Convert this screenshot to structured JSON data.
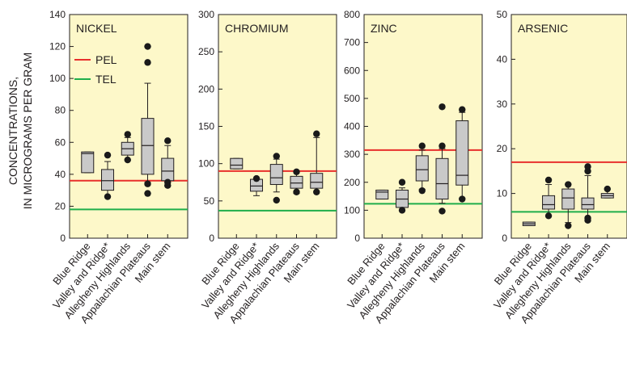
{
  "ylabel_lines": [
    "CONCENTRATIONS,",
    "IN MICROGRAMS PER GRAM"
  ],
  "colors": {
    "panel_bg": "#fdf8c9",
    "pel": "#e8302c",
    "tel": "#1fae4b",
    "box_fill": "#c9c9c9",
    "outlier": "#1a1a1a"
  },
  "chart_data": [
    {
      "type": "boxplot",
      "title": "NICKEL",
      "ylim": [
        0,
        140
      ],
      "yticks": [
        0,
        20,
        40,
        60,
        80,
        100,
        120,
        140
      ],
      "categories": [
        "Blue Ridge",
        "Valley and Ridge*",
        "Allegheny Highlands",
        "Appalachian Plateaus",
        "Main stem"
      ],
      "boxes": [
        {
          "q1": 41,
          "median": 53,
          "q3": 54,
          "whisker_low": 41,
          "whisker_high": 54,
          "outliers": []
        },
        {
          "q1": 30,
          "median": 36,
          "q3": 43,
          "whisker_low": 26,
          "whisker_high": 48,
          "outliers": [
            26,
            52
          ]
        },
        {
          "q1": 52,
          "median": 56,
          "q3": 60,
          "whisker_low": 49,
          "whisker_high": 63,
          "outliers": [
            49,
            65
          ]
        },
        {
          "q1": 40,
          "median": 58,
          "q3": 75,
          "whisker_low": 35,
          "whisker_high": 97,
          "outliers": [
            28,
            34,
            110,
            120
          ]
        },
        {
          "q1": 36,
          "median": 42,
          "q3": 50,
          "whisker_low": 33,
          "whisker_high": 58,
          "outliers": [
            33,
            35,
            61
          ]
        }
      ],
      "pel": 36,
      "tel": 18,
      "legend": {
        "pel_label": "PEL",
        "tel_label": "TEL"
      }
    },
    {
      "type": "boxplot",
      "title": "CHROMIUM",
      "ylim": [
        0,
        300
      ],
      "yticks": [
        0,
        50,
        100,
        150,
        200,
        250,
        300
      ],
      "categories": [
        "Blue Ridge",
        "Valley and Ridge*",
        "Allegheny Highlands",
        "Appalachian Plateaus",
        "Main stem"
      ],
      "boxes": [
        {
          "q1": 93,
          "median": 98,
          "q3": 107,
          "whisker_low": 93,
          "whisker_high": 107,
          "outliers": []
        },
        {
          "q1": 63,
          "median": 70,
          "q3": 79,
          "whisker_low": 57,
          "whisker_high": 80,
          "outliers": [
            80
          ]
        },
        {
          "q1": 72,
          "median": 81,
          "q3": 99,
          "whisker_low": 62,
          "whisker_high": 106,
          "outliers": [
            51,
            110
          ]
        },
        {
          "q1": 67,
          "median": 74,
          "q3": 83,
          "whisker_low": 60,
          "whisker_high": 90,
          "outliers": [
            62,
            89
          ]
        },
        {
          "q1": 67,
          "median": 75,
          "q3": 87,
          "whisker_low": 62,
          "whisker_high": 135,
          "outliers": [
            62,
            140
          ]
        }
      ],
      "pel": 90,
      "tel": 37
    },
    {
      "type": "boxplot",
      "title": "ZINC",
      "ylim": [
        0,
        800
      ],
      "yticks": [
        0,
        100,
        200,
        300,
        400,
        500,
        600,
        700,
        800
      ],
      "categories": [
        "Blue Ridge",
        "Valley and Ridge*",
        "Allegheny Highlands",
        "Appalachian Plateaus",
        "Main stem"
      ],
      "boxes": [
        {
          "q1": 140,
          "median": 165,
          "q3": 172,
          "whisker_low": 140,
          "whisker_high": 172,
          "outliers": []
        },
        {
          "q1": 110,
          "median": 140,
          "q3": 172,
          "whisker_low": 100,
          "whisker_high": 180,
          "outliers": [
            100,
            200
          ]
        },
        {
          "q1": 205,
          "median": 245,
          "q3": 295,
          "whisker_low": 175,
          "whisker_high": 315,
          "outliers": [
            170,
            330
          ]
        },
        {
          "q1": 140,
          "median": 195,
          "q3": 285,
          "whisker_low": 125,
          "whisker_high": 320,
          "outliers": [
            97,
            330,
            470
          ]
        },
        {
          "q1": 190,
          "median": 225,
          "q3": 420,
          "whisker_low": 140,
          "whisker_high": 450,
          "outliers": [
            140,
            460
          ]
        }
      ],
      "pel": 315,
      "tel": 123
    },
    {
      "type": "boxplot",
      "title": "ARSENIC",
      "ylim": [
        0,
        50
      ],
      "yticks": [
        0,
        10,
        20,
        30,
        40,
        50
      ],
      "categories": [
        "Blue Ridge",
        "Valley and Ridge*",
        "Allegheny Highlands",
        "Appalachian Plateaus",
        "Main stem"
      ],
      "boxes": [
        {
          "q1": 2.8,
          "median": 3.2,
          "q3": 3.6,
          "whisker_low": 2.8,
          "whisker_high": 3.6,
          "outliers": []
        },
        {
          "q1": 6.5,
          "median": 7.5,
          "q3": 9.5,
          "whisker_low": 5,
          "whisker_high": 12,
          "outliers": [
            5,
            13
          ]
        },
        {
          "q1": 6.5,
          "median": 9,
          "q3": 11,
          "whisker_low": 3.5,
          "whisker_high": 12,
          "outliers": [
            2.8,
            12
          ]
        },
        {
          "q1": 6.5,
          "median": 7.5,
          "q3": 9,
          "whisker_low": 4.5,
          "whisker_high": 14,
          "outliers": [
            4,
            4.5,
            15,
            16
          ]
        },
        {
          "q1": 9,
          "median": 9.5,
          "q3": 10,
          "whisker_low": 9,
          "whisker_high": 11,
          "outliers": [
            11
          ]
        }
      ],
      "pel": 17,
      "tel": 5.9
    }
  ]
}
